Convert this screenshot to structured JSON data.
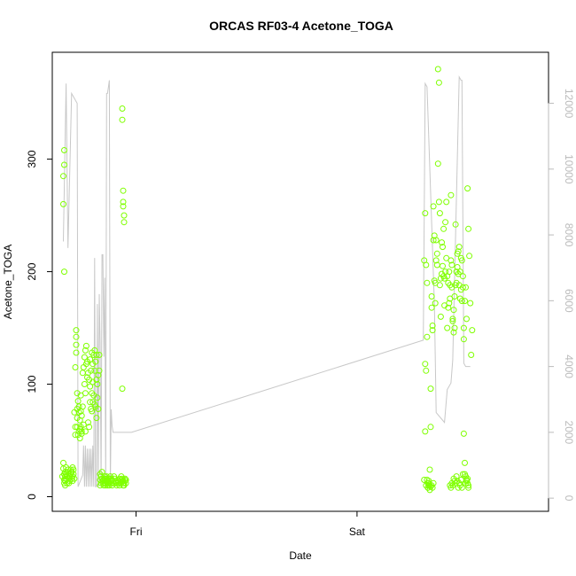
{
  "chart_data": {
    "type": "scatter",
    "title": "ORCAS RF03-4 Acetone_TOGA",
    "xlabel": "Date",
    "ylabel": "Acetone_TOGA",
    "x_unit": "hours from Thursday 00:00",
    "xlim": [
      14.9,
      68.8
    ],
    "x_ticks": [
      {
        "value": 24,
        "label": "Fri"
      },
      {
        "value": 48,
        "label": "Sat"
      }
    ],
    "ylim": [
      -13,
      395
    ],
    "y_ticks": [
      0,
      100,
      200,
      300
    ],
    "y2lim": [
      -400,
      13550
    ],
    "y2_ticks": [
      0,
      2000,
      4000,
      6000,
      8000,
      10000,
      12000
    ],
    "colors": {
      "points": "#7fff00",
      "line": "#c8c8c8",
      "right_axis": "#bbbbbb"
    },
    "series": [
      {
        "kind": "points",
        "axis": "left",
        "x": [
          16.1,
          16.1,
          16.2,
          16.2,
          16.2,
          16.3,
          16.3,
          16.3,
          16.3,
          16.4,
          16.4,
          16.4,
          16.5,
          16.5,
          16.6,
          16.6,
          16.7,
          16.7,
          16.8,
          16.8,
          16.9,
          16.9,
          17.0,
          17.0,
          17.1,
          17.1,
          17.1,
          17.2,
          17.2,
          17.3,
          17.3,
          17.4,
          17.4,
          17.4,
          17.5,
          17.5,
          17.5,
          17.5,
          17.6,
          17.6,
          17.6,
          17.6,
          17.7,
          17.7,
          17.8,
          17.8,
          17.8,
          17.9,
          17.9,
          17.9,
          18.0,
          18.0,
          18.0,
          18.1,
          18.1,
          18.1,
          18.2,
          18.2,
          18.3,
          18.3,
          18.4,
          18.4,
          18.5,
          18.5,
          18.5,
          18.6,
          18.6,
          18.7,
          18.7,
          18.8,
          18.8,
          18.9,
          18.9,
          19.0,
          19.0,
          19.0,
          19.1,
          19.1,
          19.2,
          19.2,
          19.2,
          19.3,
          19.3,
          19.3,
          19.4,
          19.4,
          19.5,
          19.5,
          19.5,
          19.6,
          19.6,
          19.7,
          19.7,
          19.7,
          19.8,
          19.8,
          19.9,
          19.9,
          20.0,
          20.0,
          20.1,
          20.1,
          20.1,
          20.2,
          20.2,
          20.3,
          20.3,
          20.4,
          20.4,
          20.5,
          20.5,
          20.6,
          20.6,
          20.6,
          20.7,
          20.7,
          20.7,
          20.8,
          20.8,
          20.8,
          20.9,
          20.9,
          20.9,
          21.0,
          21.0,
          21.0,
          21.1,
          21.1,
          21.2,
          21.2,
          21.3,
          21.3,
          21.4,
          21.4,
          21.5,
          21.6,
          21.6,
          21.7,
          21.8,
          21.8,
          21.9,
          22.0,
          22.0,
          22.1,
          22.2,
          22.2,
          22.3,
          22.4,
          22.4,
          22.5,
          22.5,
          22.6,
          22.6,
          22.6,
          22.7,
          22.7,
          22.8,
          22.8,
          22.9,
          22.9,
          16.0,
          16.1,
          16.1,
          16.2,
          16.2,
          16.2,
          22.5,
          22.5,
          22.5,
          22.6,
          22.6,
          22.6,
          22.7,
          22.7,
          55.3,
          55.4,
          55.4,
          55.5,
          55.5,
          55.6,
          55.6,
          55.7,
          55.7,
          55.8,
          55.8,
          55.9,
          55.9,
          56.0,
          56.0,
          56.1,
          56.1,
          56.2,
          56.2,
          56.3,
          56.3,
          56.4,
          56.4,
          56.5,
          56.5,
          56.6,
          56.6,
          56.7,
          56.7,
          56.8,
          56.8,
          56.9,
          56.9,
          57.0,
          57.0,
          57.1,
          57.1,
          57.2,
          57.2,
          57.3,
          57.3,
          57.4,
          57.4,
          57.5,
          57.5,
          57.6,
          57.6,
          57.7,
          57.7,
          57.8,
          57.8,
          57.9,
          57.9,
          58.0,
          58.0,
          58.1,
          58.1,
          58.2,
          58.2,
          58.3,
          58.3,
          58.4,
          58.4,
          58.5,
          58.5,
          58.6,
          58.6,
          58.7,
          58.7,
          58.8,
          58.8,
          58.9,
          58.9,
          59.0,
          59.0,
          59.1,
          59.1,
          59.2,
          59.2,
          59.3,
          59.3,
          59.4,
          59.4,
          59.5,
          59.5,
          59.6,
          59.6,
          59.7,
          59.7,
          59.8,
          59.8,
          59.9,
          59.9,
          60.0,
          60.0,
          60.1,
          60.1,
          55.3,
          55.4,
          55.5,
          55.6,
          55.7,
          55.8,
          55.9,
          56.0,
          56.1,
          56.2,
          56.3,
          58.1,
          58.2,
          58.3,
          58.4,
          58.5,
          58.6,
          58.7,
          58.8,
          58.9,
          59.0,
          59.1,
          59.2,
          59.3,
          59.4,
          59.5,
          59.6,
          59.7,
          59.8,
          59.9,
          60.0,
          60.1,
          60.2,
          60.3,
          60.4,
          60.5
        ],
        "y": [
          30,
          25,
          20,
          15,
          12,
          10,
          14,
          18,
          22,
          26,
          20,
          16,
          12,
          18,
          24,
          22,
          16,
          12,
          18,
          14,
          20,
          24,
          16,
          22,
          14,
          18,
          26,
          20,
          24,
          16,
          75,
          55,
          62,
          115,
          128,
          135,
          142,
          148,
          78,
          62,
          92,
          70,
          85,
          55,
          58,
          80,
          75,
          60,
          52,
          68,
          90,
          62,
          76,
          56,
          72,
          58,
          110,
          80,
          115,
          64,
          100,
          124,
          58,
          92,
          130,
          118,
          134,
          120,
          106,
          66,
          110,
          62,
          104,
          122,
          84,
          98,
          78,
          112,
          92,
          76,
          128,
          102,
          118,
          84,
          90,
          126,
          82,
          112,
          130,
          80,
          120,
          70,
          104,
          126,
          88,
          100,
          108,
          78,
          112,
          126,
          20,
          15,
          10,
          18,
          12,
          16,
          22,
          14,
          12,
          10,
          15,
          18,
          12,
          16,
          14,
          12,
          10,
          16,
          14,
          18,
          15,
          12,
          10,
          14,
          16,
          12,
          10,
          12,
          14,
          18,
          16,
          12,
          10,
          15,
          14,
          12,
          18,
          16,
          14,
          12,
          10,
          15,
          12,
          14,
          16,
          10,
          12,
          15,
          18,
          14,
          16,
          12,
          10,
          14,
          10,
          12,
          16,
          14,
          12,
          15,
          18,
          260,
          285,
          295,
          308,
          200,
          96,
          345,
          335,
          272,
          262,
          258,
          250,
          244,
          210,
          252,
          118,
          112,
          206,
          190,
          142,
          12,
          8,
          10,
          14,
          6,
          24,
          62,
          96,
          178,
          168,
          152,
          148,
          258,
          228,
          232,
          192,
          172,
          190,
          228,
          210,
          206,
          216,
          296,
          380,
          368,
          262,
          252,
          188,
          194,
          160,
          198,
          226,
          205,
          222,
          238,
          196,
          194,
          170,
          244,
          200,
          212,
          262,
          196,
          150,
          168,
          190,
          172,
          200,
          176,
          188,
          210,
          268,
          186,
          206,
          156,
          158,
          166,
          146,
          150,
          178,
          188,
          242,
          200,
          190,
          216,
          204,
          218,
          198,
          222,
          188,
          200,
          176,
          184,
          212,
          210,
          174,
          196,
          186,
          150,
          140,
          30,
          20,
          18,
          12,
          15,
          14,
          16,
          12,
          10,
          8,
          15,
          58,
          10,
          15,
          8,
          12,
          10,
          9,
          10,
          8,
          12,
          10,
          8,
          12,
          10,
          16,
          14,
          12,
          18,
          14,
          8,
          12,
          10,
          15,
          8,
          20,
          56,
          174,
          186,
          158,
          274,
          238,
          214,
          172,
          126,
          148
        ]
      },
      {
        "kind": "line",
        "axis": "right",
        "x": [
          16.1,
          16.4,
          16.6,
          17.0,
          17.6,
          17.7,
          18.2,
          18.3,
          18.4,
          18.5,
          18.6,
          18.7,
          18.8,
          18.9,
          19.0,
          19.1,
          19.2,
          19.3,
          19.4,
          19.5,
          19.6,
          19.7,
          19.8,
          19.9,
          20.0,
          20.1,
          20.2,
          20.3,
          20.4,
          20.5,
          20.6,
          20.7,
          20.8,
          20.9,
          21.0,
          21.1,
          21.2,
          21.3,
          21.4,
          21.5,
          22.0,
          22.3,
          22.9,
          23.0,
          23.1,
          23.3,
          23.5,
          55.2,
          55.4,
          55.6,
          56.4,
          56.6,
          57.5,
          57.8,
          58.2,
          58.4,
          59.1,
          59.3,
          59.4,
          59.6,
          59.8,
          60.2,
          60.3
        ],
        "y": [
          7800,
          12600,
          7600,
          12300,
          12000,
          350,
          700,
          1600,
          350,
          1600,
          350,
          1500,
          350,
          1500,
          350,
          1500,
          350,
          1600,
          350,
          7300,
          350,
          350,
          5900,
          350,
          6200,
          4700,
          350,
          7400,
          7400,
          4300,
          6700,
          350,
          12300,
          12300,
          12500,
          12700,
          350,
          2700,
          2200,
          2000,
          2000,
          2000,
          2000,
          2000,
          2000,
          2000,
          2000,
          4800,
          12600,
          12500,
          5900,
          2600,
          2300,
          3300,
          3500,
          4200,
          12800,
          12700,
          12700,
          4100,
          4000,
          4000,
          4000
        ]
      }
    ]
  }
}
